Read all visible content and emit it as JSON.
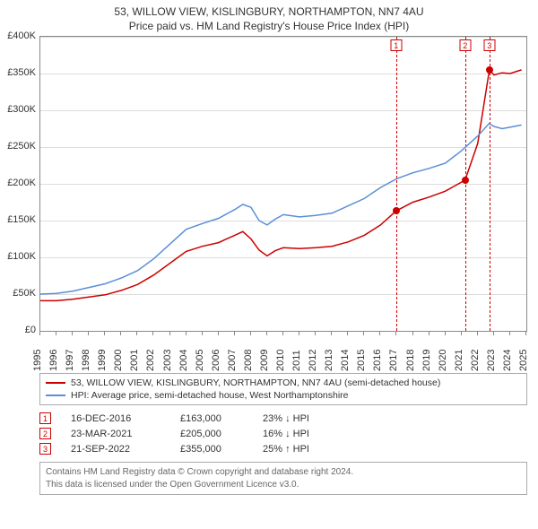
{
  "title": "53, WILLOW VIEW, KISLINGBURY, NORTHAMPTON, NN7 4AU",
  "subtitle": "Price paid vs. HM Land Registry's House Price Index (HPI)",
  "chart": {
    "type": "line",
    "xlim": [
      1995,
      2025
    ],
    "ylim": [
      0,
      400000
    ],
    "ytick_step": 50000,
    "yticks": [
      "£0",
      "£50K",
      "£100K",
      "£150K",
      "£200K",
      "£250K",
      "£300K",
      "£350K",
      "£400K"
    ],
    "xticks": [
      1995,
      1996,
      1997,
      1998,
      1999,
      2000,
      2001,
      2002,
      2003,
      2004,
      2005,
      2006,
      2007,
      2008,
      2009,
      2010,
      2011,
      2012,
      2013,
      2014,
      2015,
      2016,
      2017,
      2018,
      2019,
      2020,
      2021,
      2022,
      2023,
      2024,
      2025
    ],
    "grid_color": "#dddddd",
    "border_color": "#888888",
    "background_color": "#ffffff",
    "series": [
      {
        "key": "property",
        "label": "53, WILLOW VIEW, KISLINGBURY, NORTHAMPTON, NN7 4AU (semi-detached house)",
        "color": "#cc0000",
        "line_width": 1.5,
        "points": [
          [
            1995,
            41000
          ],
          [
            1996,
            41000
          ],
          [
            1997,
            43000
          ],
          [
            1998,
            46000
          ],
          [
            1999,
            49000
          ],
          [
            2000,
            55000
          ],
          [
            2001,
            63000
          ],
          [
            2002,
            76000
          ],
          [
            2003,
            92000
          ],
          [
            2004,
            108000
          ],
          [
            2005,
            115000
          ],
          [
            2006,
            120000
          ],
          [
            2007,
            130000
          ],
          [
            2007.5,
            135000
          ],
          [
            2008,
            125000
          ],
          [
            2008.5,
            110000
          ],
          [
            2009,
            102000
          ],
          [
            2009.5,
            109000
          ],
          [
            2010,
            113000
          ],
          [
            2011,
            112000
          ],
          [
            2012,
            113000
          ],
          [
            2013,
            115000
          ],
          [
            2014,
            121000
          ],
          [
            2015,
            130000
          ],
          [
            2016,
            144000
          ],
          [
            2016.96,
            163000
          ],
          [
            2018,
            175000
          ],
          [
            2019,
            182000
          ],
          [
            2020,
            190000
          ],
          [
            2021.22,
            205000
          ],
          [
            2022,
            255000
          ],
          [
            2022.72,
            355000
          ],
          [
            2023,
            348000
          ],
          [
            2023.5,
            351000
          ],
          [
            2024,
            350000
          ],
          [
            2024.7,
            355000
          ]
        ],
        "sale_markers": [
          {
            "x": 2016.96,
            "y": 163000
          },
          {
            "x": 2021.22,
            "y": 205000
          },
          {
            "x": 2022.72,
            "y": 355000
          }
        ]
      },
      {
        "key": "hpi",
        "label": "HPI: Average price, semi-detached house, West Northamptonshire",
        "color": "#5b8fd6",
        "line_width": 1.5,
        "points": [
          [
            1995,
            50000
          ],
          [
            1996,
            51000
          ],
          [
            1997,
            54000
          ],
          [
            1998,
            59000
          ],
          [
            1999,
            64000
          ],
          [
            2000,
            72000
          ],
          [
            2001,
            82000
          ],
          [
            2002,
            98000
          ],
          [
            2003,
            118000
          ],
          [
            2004,
            138000
          ],
          [
            2005,
            146000
          ],
          [
            2006,
            153000
          ],
          [
            2007,
            165000
          ],
          [
            2007.5,
            172000
          ],
          [
            2008,
            168000
          ],
          [
            2008.5,
            150000
          ],
          [
            2009,
            144000
          ],
          [
            2009.5,
            152000
          ],
          [
            2010,
            158000
          ],
          [
            2011,
            155000
          ],
          [
            2012,
            157000
          ],
          [
            2013,
            160000
          ],
          [
            2014,
            170000
          ],
          [
            2015,
            180000
          ],
          [
            2016,
            195000
          ],
          [
            2017,
            207000
          ],
          [
            2018,
            215000
          ],
          [
            2019,
            221000
          ],
          [
            2020,
            228000
          ],
          [
            2021,
            245000
          ],
          [
            2022,
            265000
          ],
          [
            2022.7,
            282000
          ],
          [
            2023,
            278000
          ],
          [
            2023.5,
            275000
          ],
          [
            2024,
            277000
          ],
          [
            2024.7,
            280000
          ]
        ]
      }
    ],
    "event_lines": [
      {
        "n": "1",
        "x": 2016.96,
        "color": "#cc0000"
      },
      {
        "n": "2",
        "x": 2021.22,
        "color": "#cc0000"
      },
      {
        "n": "3",
        "x": 2022.72,
        "color": "#cc0000"
      }
    ]
  },
  "legend": [
    {
      "color": "#cc0000",
      "text": "53, WILLOW VIEW, KISLINGBURY, NORTHAMPTON, NN7 4AU (semi-detached house)"
    },
    {
      "color": "#5b8fd6",
      "text": "HPI: Average price, semi-detached house, West Northamptonshire"
    }
  ],
  "sales": [
    {
      "n": "1",
      "date": "16-DEC-2016",
      "price": "£163,000",
      "diff": "23% ↓ HPI",
      "color": "#cc0000"
    },
    {
      "n": "2",
      "date": "23-MAR-2021",
      "price": "£205,000",
      "diff": "16% ↓ HPI",
      "color": "#cc0000"
    },
    {
      "n": "3",
      "date": "21-SEP-2022",
      "price": "£355,000",
      "diff": "25% ↑ HPI",
      "color": "#cc0000"
    }
  ],
  "footer": {
    "line1": "Contains HM Land Registry data © Crown copyright and database right 2024.",
    "line2": "This data is licensed under the Open Government Licence v3.0."
  }
}
